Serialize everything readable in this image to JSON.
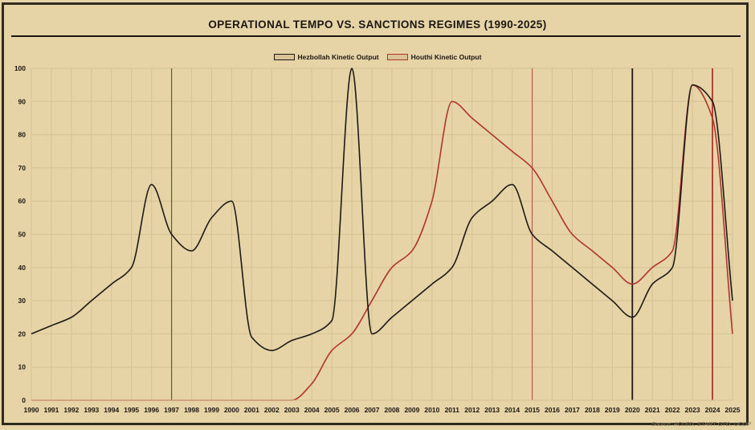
{
  "chart_data": {
    "type": "line",
    "title": "OPERATIONAL TEMPO VS. SANCTIONS REGIMES (1990-2025)",
    "xlabel": "",
    "ylabel": "",
    "x": [
      1990,
      1991,
      1992,
      1993,
      1994,
      1995,
      1996,
      1997,
      1998,
      1999,
      2000,
      2001,
      2002,
      2003,
      2004,
      2005,
      2006,
      2007,
      2008,
      2009,
      2010,
      2011,
      2012,
      2013,
      2014,
      2015,
      2016,
      2017,
      2018,
      2019,
      2020,
      2021,
      2022,
      2023,
      2024,
      2025
    ],
    "xlim": [
      1990,
      2025
    ],
    "ylim": [
      0,
      100
    ],
    "yticks": [
      0,
      10,
      20,
      30,
      40,
      50,
      60,
      70,
      80,
      90,
      100
    ],
    "grid": true,
    "legend_position": "top-center",
    "series": [
      {
        "name": "Hezbollah Kinetic Output",
        "color": "#1c1a16",
        "values": [
          20,
          22.5,
          25,
          30,
          35,
          40,
          65,
          50,
          45,
          55,
          60,
          19,
          15,
          18,
          20,
          24,
          100,
          20,
          25,
          30,
          35,
          40,
          55,
          60,
          65,
          50,
          45,
          40,
          35,
          30,
          25,
          35,
          40,
          95,
          90,
          30
        ]
      },
      {
        "name": "Houthi Kinetic Output",
        "color": "#b0352c",
        "values": [
          0,
          0,
          0,
          0,
          0,
          0,
          0,
          0,
          0,
          0,
          0,
          0,
          0,
          0,
          5,
          15,
          20,
          30,
          40,
          45,
          60,
          90,
          85,
          80,
          75,
          70,
          60,
          50,
          45,
          40,
          35,
          40,
          45,
          95,
          85,
          20
        ]
      }
    ],
    "reference_lines": [
      {
        "x": 1997,
        "color": "#55524a",
        "weight": "thin"
      },
      {
        "x": 2015,
        "color": "#c0504a",
        "weight": "thin"
      },
      {
        "x": 2020,
        "color": "#1c1a16",
        "weight": "thick"
      },
      {
        "x": 2024,
        "color": "#b0352c",
        "weight": "thick"
      }
    ],
    "source_note": "Source: ACLED, START GTD, UCDP"
  },
  "colors": {
    "background": "#e6d3a6",
    "grid": "#d6c291",
    "frame": "#2e2a20"
  }
}
